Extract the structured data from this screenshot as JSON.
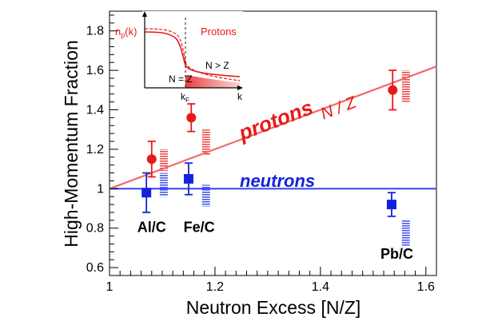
{
  "chart_data": {
    "type": "scatter",
    "xlabel": "Neutron Excess [N/Z]",
    "ylabel": "High-Momentum Fraction",
    "xlim": [
      1.0,
      1.62
    ],
    "ylim": [
      0.56,
      1.9
    ],
    "x_ticks": [
      "1",
      "1.2",
      "1.4",
      "1.6"
    ],
    "x_tick_values": [
      1.0,
      1.2,
      1.4,
      1.6
    ],
    "y_ticks": [
      "0.6",
      "0.8",
      "1",
      "1.2",
      "1.4",
      "1.6",
      "1.8"
    ],
    "y_tick_values": [
      0.6,
      0.8,
      1.0,
      1.2,
      1.4,
      1.6,
      1.8
    ],
    "colors": {
      "protons": "#e8191b",
      "protons_line": "#f06a68",
      "neutrons": "#1522dc",
      "neutrons_line": "#3d4cf0",
      "theory_protons": "#f06a6a",
      "theory_neutrons": "#5a66ea"
    },
    "lines": [
      {
        "label": "protons",
        "sublabel": "N / Z",
        "x": [
          1.0,
          1.62
        ],
        "y": [
          1.0,
          1.62
        ]
      },
      {
        "label": "neutrons",
        "x": [
          1.0,
          1.62
        ],
        "y": [
          1.0,
          1.0
        ]
      }
    ],
    "series": [
      {
        "name": "protons",
        "points": [
          {
            "x": 1.08,
            "y": 1.15,
            "err": 0.09
          },
          {
            "x": 1.155,
            "y": 1.36,
            "err": 0.07
          },
          {
            "x": 1.537,
            "y": 1.5,
            "err": 0.1
          }
        ]
      },
      {
        "name": "neutrons",
        "points": [
          {
            "x": 1.07,
            "y": 0.98,
            "err": 0.1
          },
          {
            "x": 1.15,
            "y": 1.05,
            "err": 0.08
          },
          {
            "x": 1.535,
            "y": 0.92,
            "err": 0.06
          }
        ]
      }
    ],
    "theory_bands": [
      {
        "group": "protons",
        "x": 1.103,
        "y_low": 1.09,
        "y_high": 1.2
      },
      {
        "group": "protons",
        "x": 1.183,
        "y_low": 1.17,
        "y_high": 1.3
      },
      {
        "group": "protons",
        "x": 1.562,
        "y_low": 1.44,
        "y_high": 1.6
      },
      {
        "group": "neutrons",
        "x": 1.103,
        "y_low": 0.96,
        "y_high": 1.08
      },
      {
        "group": "neutrons",
        "x": 1.183,
        "y_low": 0.91,
        "y_high": 1.02
      },
      {
        "group": "neutrons",
        "x": 1.562,
        "y_low": 0.71,
        "y_high": 0.84
      }
    ],
    "targets": [
      {
        "label": "Al/C",
        "x": 1.08,
        "y": 0.78
      },
      {
        "label": "Fe/C",
        "x": 1.17,
        "y": 0.78
      },
      {
        "label": "Pb/C",
        "x": 1.545,
        "y": 0.645
      }
    ],
    "inset": {
      "ylabel": "n_p(k)",
      "ylabel_main": "n",
      "ylabel_sub": "p",
      "ylabel_tail": "(k)",
      "xlabel": "k",
      "kf_main": "k",
      "kf_sub": "F",
      "legend_label": "Protons",
      "region_left": "N = Z",
      "region_right": "N > Z"
    }
  }
}
